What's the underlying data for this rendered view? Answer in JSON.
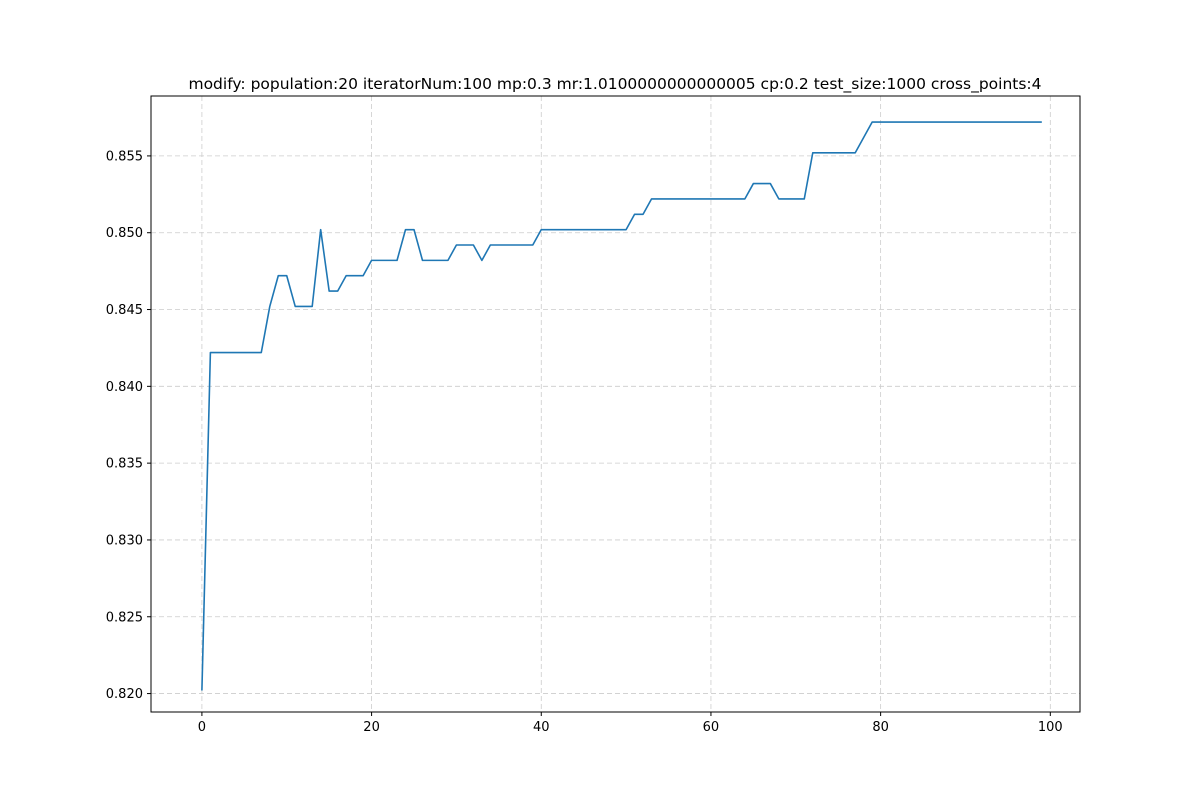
{
  "chart_data": {
    "type": "line",
    "title": "modify: population:20 iteratorNum:100 mp:0.3 mr:1.0100000000000005 cp:0.2 test_size:1000 cross_points:4",
    "xlabel": "",
    "ylabel": "",
    "xlim": [
      -6,
      103.5
    ],
    "ylim": [
      0.8188,
      0.8589
    ],
    "xticks": [
      0,
      20,
      40,
      60,
      80,
      100
    ],
    "xtick_labels": [
      "0",
      "20",
      "40",
      "60",
      "80",
      "100"
    ],
    "yticks": [
      0.82,
      0.825,
      0.83,
      0.835,
      0.84,
      0.845,
      0.85,
      0.855
    ],
    "ytick_labels": [
      "0.820",
      "0.825",
      "0.830",
      "0.835",
      "0.840",
      "0.845",
      "0.850",
      "0.855"
    ],
    "grid": true,
    "legend": "none",
    "series": [
      {
        "color": "#1f77b4",
        "x": [
          0,
          1,
          2,
          3,
          4,
          5,
          6,
          7,
          8,
          9,
          10,
          11,
          12,
          13,
          14,
          15,
          16,
          17,
          18,
          19,
          20,
          21,
          22,
          23,
          24,
          25,
          26,
          27,
          28,
          29,
          30,
          31,
          32,
          33,
          34,
          35,
          36,
          37,
          38,
          39,
          40,
          41,
          42,
          43,
          44,
          45,
          46,
          47,
          48,
          49,
          50,
          51,
          52,
          53,
          54,
          55,
          56,
          57,
          58,
          59,
          60,
          61,
          62,
          63,
          64,
          65,
          66,
          67,
          68,
          69,
          70,
          71,
          72,
          73,
          74,
          75,
          76,
          77,
          78,
          79,
          80,
          81,
          82,
          83,
          84,
          85,
          86,
          87,
          88,
          89,
          90,
          91,
          92,
          93,
          94,
          95,
          96,
          97,
          98,
          99
        ],
        "y": [
          0.8202,
          0.8422,
          0.8422,
          0.8422,
          0.8422,
          0.8422,
          0.8422,
          0.8422,
          0.8452,
          0.8472,
          0.8472,
          0.8452,
          0.8452,
          0.8452,
          0.8502,
          0.8462,
          0.8462,
          0.8472,
          0.8472,
          0.8472,
          0.8482,
          0.8482,
          0.8482,
          0.8482,
          0.8502,
          0.8502,
          0.8482,
          0.8482,
          0.8482,
          0.8482,
          0.8492,
          0.8492,
          0.8492,
          0.8482,
          0.8492,
          0.8492,
          0.8492,
          0.8492,
          0.8492,
          0.8492,
          0.8502,
          0.8502,
          0.8502,
          0.8502,
          0.8502,
          0.8502,
          0.8502,
          0.8502,
          0.8502,
          0.8502,
          0.8502,
          0.8512,
          0.8512,
          0.8522,
          0.8522,
          0.8522,
          0.8522,
          0.8522,
          0.8522,
          0.8522,
          0.8522,
          0.8522,
          0.8522,
          0.8522,
          0.8522,
          0.8532,
          0.8532,
          0.8532,
          0.8522,
          0.8522,
          0.8522,
          0.8522,
          0.8552,
          0.8552,
          0.8552,
          0.8552,
          0.8552,
          0.8552,
          0.8562,
          0.8572,
          0.8572,
          0.8572,
          0.8572,
          0.8572,
          0.8572,
          0.8572,
          0.8572,
          0.8572,
          0.8572,
          0.8572,
          0.8572,
          0.8572,
          0.8572,
          0.8572,
          0.8572,
          0.8572,
          0.8572,
          0.8572,
          0.8572,
          0.8572
        ]
      }
    ]
  }
}
